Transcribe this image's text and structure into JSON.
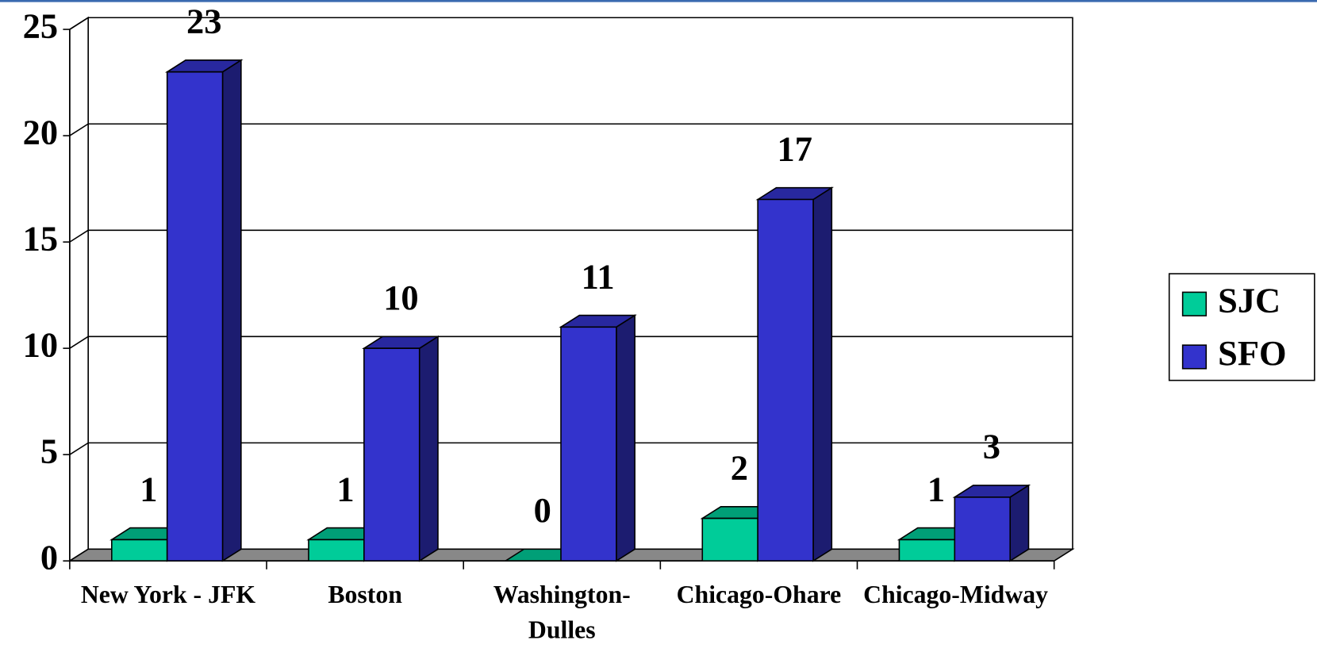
{
  "chart_data": {
    "type": "bar3d",
    "categories": [
      "New York - JFK",
      "Boston",
      "Washington-Dulles",
      "Chicago-Ohare",
      "Chicago-Midway"
    ],
    "series": [
      {
        "name": "SJC",
        "color": "#00cc99",
        "values": [
          1,
          1,
          0,
          2,
          1
        ]
      },
      {
        "name": "SFO",
        "color": "#3333cc",
        "values": [
          23,
          10,
          11,
          17,
          3
        ]
      }
    ],
    "ylim": [
      0,
      25
    ],
    "yticks": [
      0,
      5,
      10,
      15,
      20,
      25
    ],
    "grid": true,
    "legend": "right"
  }
}
